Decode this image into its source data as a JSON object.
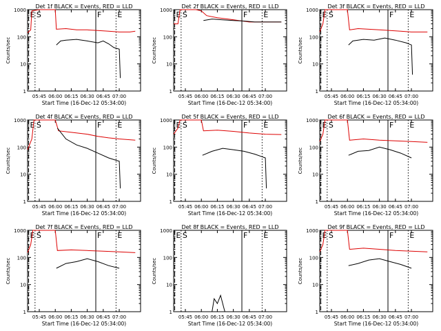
{
  "chart_data": {
    "type": "line",
    "xlabel": "Start Time (16-Dec-12 05:34:00)",
    "ylabel": "Counts/sec",
    "x_range": [
      "05:34",
      "07:20"
    ],
    "ylim": [
      1,
      1000
    ],
    "y_scale": "log",
    "y_ticks": [
      "1",
      "10",
      "100",
      "1000"
    ],
    "x_ticks": [
      "05:45",
      "06:00",
      "06:15",
      "06:30",
      "06:45",
      "07:00"
    ],
    "colors": {
      "events": "#000000",
      "lld": "#dd0000",
      "axes": "#000000"
    },
    "markers": [
      {
        "label": "E",
        "time": "05:35",
        "style": "dashed"
      },
      {
        "label": "S",
        "time": "05:41",
        "style": "dotted"
      },
      {
        "label": "F",
        "time": "06:38",
        "style": "solid"
      },
      {
        "label": "E",
        "time": "06:57",
        "style": "dotted"
      }
    ],
    "panels": [
      {
        "title": "Det 1f BLACK = Events, RED = LLD",
        "series": [
          {
            "color": "#dd0000",
            "points": [
              [
                "05:34",
                140
              ],
              [
                "05:37",
                180
              ],
              [
                "05:38",
                900
              ],
              [
                "05:45",
                1000
              ],
              [
                "05:55",
                1000
              ],
              [
                "06:00",
                1000
              ],
              [
                "06:01",
                190
              ],
              [
                "06:10",
                200
              ],
              [
                "06:20",
                180
              ],
              [
                "06:30",
                180
              ],
              [
                "06:40",
                170
              ],
              [
                "06:50",
                160
              ],
              [
                "07:00",
                150
              ],
              [
                "07:10",
                150
              ],
              [
                "07:15",
                160
              ]
            ]
          },
          {
            "color": "#000000",
            "points": [
              [
                "06:01",
                50
              ],
              [
                "06:05",
                70
              ],
              [
                "06:10",
                75
              ],
              [
                "06:20",
                80
              ],
              [
                "06:30",
                70
              ],
              [
                "06:40",
                60
              ],
              [
                "06:45",
                70
              ],
              [
                "06:50",
                55
              ],
              [
                "06:55",
                40
              ],
              [
                "07:00",
                35
              ],
              [
                "07:01",
                3
              ]
            ]
          }
        ]
      },
      {
        "title": "Det 2f BLACK = Events, RED = LLD",
        "series": [
          {
            "color": "#dd0000",
            "points": [
              [
                "05:34",
                300
              ],
              [
                "05:38",
                300
              ],
              [
                "05:40",
                1000
              ],
              [
                "05:55",
                1000
              ],
              [
                "06:00",
                900
              ],
              [
                "06:05",
                600
              ],
              [
                "06:15",
                500
              ],
              [
                "06:25",
                450
              ],
              [
                "06:35",
                400
              ],
              [
                "06:45",
                350
              ],
              [
                "06:55",
                350
              ],
              [
                "07:10",
                350
              ],
              [
                "07:15",
                350
              ]
            ]
          },
          {
            "color": "#000000",
            "points": [
              [
                "06:02",
                400
              ],
              [
                "06:10",
                450
              ],
              [
                "06:20",
                420
              ],
              [
                "06:30",
                400
              ],
              [
                "06:40",
                380
              ],
              [
                "06:50",
                350
              ],
              [
                "07:00",
                350
              ],
              [
                "07:10",
                350
              ],
              [
                "07:15",
                350
              ]
            ]
          }
        ]
      },
      {
        "title": "Det 3f BLACK = Events, RED = LLD",
        "series": [
          {
            "color": "#dd0000",
            "points": [
              [
                "05:34",
                150
              ],
              [
                "05:37",
                300
              ],
              [
                "05:39",
                1000
              ],
              [
                "05:55",
                1000
              ],
              [
                "06:00",
                1000
              ],
              [
                "06:02",
                180
              ],
              [
                "06:10",
                200
              ],
              [
                "06:20",
                190
              ],
              [
                "06:30",
                180
              ],
              [
                "06:40",
                170
              ],
              [
                "06:50",
                160
              ],
              [
                "07:00",
                150
              ],
              [
                "07:15",
                150
              ]
            ]
          },
          {
            "color": "#000000",
            "points": [
              [
                "06:01",
                50
              ],
              [
                "06:05",
                70
              ],
              [
                "06:15",
                80
              ],
              [
                "06:25",
                75
              ],
              [
                "06:35",
                90
              ],
              [
                "06:45",
                75
              ],
              [
                "06:55",
                60
              ],
              [
                "07:00",
                50
              ],
              [
                "07:01",
                4
              ]
            ]
          }
        ]
      },
      {
        "title": "Det 4f BLACK = Events, RED = LLD",
        "series": [
          {
            "color": "#dd0000",
            "points": [
              [
                "05:34",
                80
              ],
              [
                "05:38",
                200
              ],
              [
                "05:40",
                1000
              ],
              [
                "05:55",
                1000
              ],
              [
                "06:00",
                1000
              ],
              [
                "06:03",
                400
              ],
              [
                "06:15",
                350
              ],
              [
                "06:30",
                300
              ],
              [
                "06:40",
                250
              ],
              [
                "06:50",
                220
              ],
              [
                "07:00",
                200
              ],
              [
                "07:15",
                180
              ]
            ]
          },
          {
            "color": "#000000",
            "points": [
              [
                "06:02",
                500
              ],
              [
                "06:10",
                200
              ],
              [
                "06:20",
                120
              ],
              [
                "06:30",
                90
              ],
              [
                "06:40",
                60
              ],
              [
                "06:50",
                40
              ],
              [
                "07:00",
                30
              ],
              [
                "07:01",
                3
              ]
            ]
          }
        ]
      },
      {
        "title": "Det 5f BLACK = Events, RED = LLD",
        "series": [
          {
            "color": "#dd0000",
            "points": [
              [
                "05:34",
                300
              ],
              [
                "05:38",
                500
              ],
              [
                "05:40",
                1000
              ],
              [
                "06:00",
                1000
              ],
              [
                "06:02",
                400
              ],
              [
                "06:15",
                420
              ],
              [
                "06:30",
                380
              ],
              [
                "06:45",
                330
              ],
              [
                "07:00",
                300
              ],
              [
                "07:15",
                290
              ]
            ]
          },
          {
            "color": "#000000",
            "points": [
              [
                "06:01",
                50
              ],
              [
                "06:10",
                70
              ],
              [
                "06:20",
                90
              ],
              [
                "06:30",
                80
              ],
              [
                "06:40",
                70
              ],
              [
                "06:50",
                55
              ],
              [
                "07:00",
                40
              ],
              [
                "07:01",
                3
              ]
            ]
          }
        ]
      },
      {
        "title": "Det 6f BLACK = Events, RED = LLD",
        "series": [
          {
            "color": "#dd0000",
            "points": [
              [
                "05:34",
                160
              ],
              [
                "05:37",
                300
              ],
              [
                "05:39",
                1000
              ],
              [
                "06:00",
                1000
              ],
              [
                "06:02",
                180
              ],
              [
                "06:15",
                200
              ],
              [
                "06:30",
                180
              ],
              [
                "06:45",
                170
              ],
              [
                "07:00",
                160
              ],
              [
                "07:15",
                150
              ]
            ]
          },
          {
            "color": "#000000",
            "points": [
              [
                "06:01",
                50
              ],
              [
                "06:10",
                70
              ],
              [
                "06:20",
                75
              ],
              [
                "06:30",
                100
              ],
              [
                "06:40",
                80
              ],
              [
                "06:50",
                60
              ],
              [
                "07:00",
                40
              ]
            ]
          }
        ]
      },
      {
        "title": "Det 7f BLACK = Events, RED = LLD",
        "series": [
          {
            "color": "#dd0000",
            "points": [
              [
                "05:34",
                150
              ],
              [
                "05:37",
                300
              ],
              [
                "05:39",
                1000
              ],
              [
                "06:00",
                1000
              ],
              [
                "06:02",
                180
              ],
              [
                "06:15",
                190
              ],
              [
                "06:30",
                180
              ],
              [
                "06:45",
                170
              ],
              [
                "07:00",
                160
              ],
              [
                "07:15",
                150
              ]
            ]
          },
          {
            "color": "#000000",
            "points": [
              [
                "06:01",
                40
              ],
              [
                "06:10",
                60
              ],
              [
                "06:20",
                70
              ],
              [
                "06:30",
                90
              ],
              [
                "06:40",
                70
              ],
              [
                "06:50",
                50
              ],
              [
                "07:00",
                40
              ]
            ]
          }
        ]
      },
      {
        "title": "Det 8f BLACK = Events, RED = LLD",
        "series": [
          {
            "color": "#000000",
            "points": [
              [
                "06:10",
                1
              ],
              [
                "06:12",
                3
              ],
              [
                "06:15",
                2
              ],
              [
                "06:18",
                4
              ],
              [
                "06:20",
                2
              ],
              [
                "06:22",
                1
              ]
            ]
          }
        ]
      },
      {
        "title": "Det 9f BLACK = Events, RED = LLD",
        "series": [
          {
            "color": "#dd0000",
            "points": [
              [
                "05:34",
                160
              ],
              [
                "05:37",
                300
              ],
              [
                "05:39",
                1000
              ],
              [
                "06:00",
                1000
              ],
              [
                "06:02",
                200
              ],
              [
                "06:15",
                220
              ],
              [
                "06:30",
                200
              ],
              [
                "06:45",
                180
              ],
              [
                "07:00",
                170
              ],
              [
                "07:15",
                160
              ]
            ]
          },
          {
            "color": "#000000",
            "points": [
              [
                "06:01",
                50
              ],
              [
                "06:10",
                60
              ],
              [
                "06:20",
                80
              ],
              [
                "06:30",
                90
              ],
              [
                "06:40",
                70
              ],
              [
                "06:50",
                55
              ],
              [
                "07:00",
                40
              ]
            ]
          }
        ]
      }
    ]
  }
}
